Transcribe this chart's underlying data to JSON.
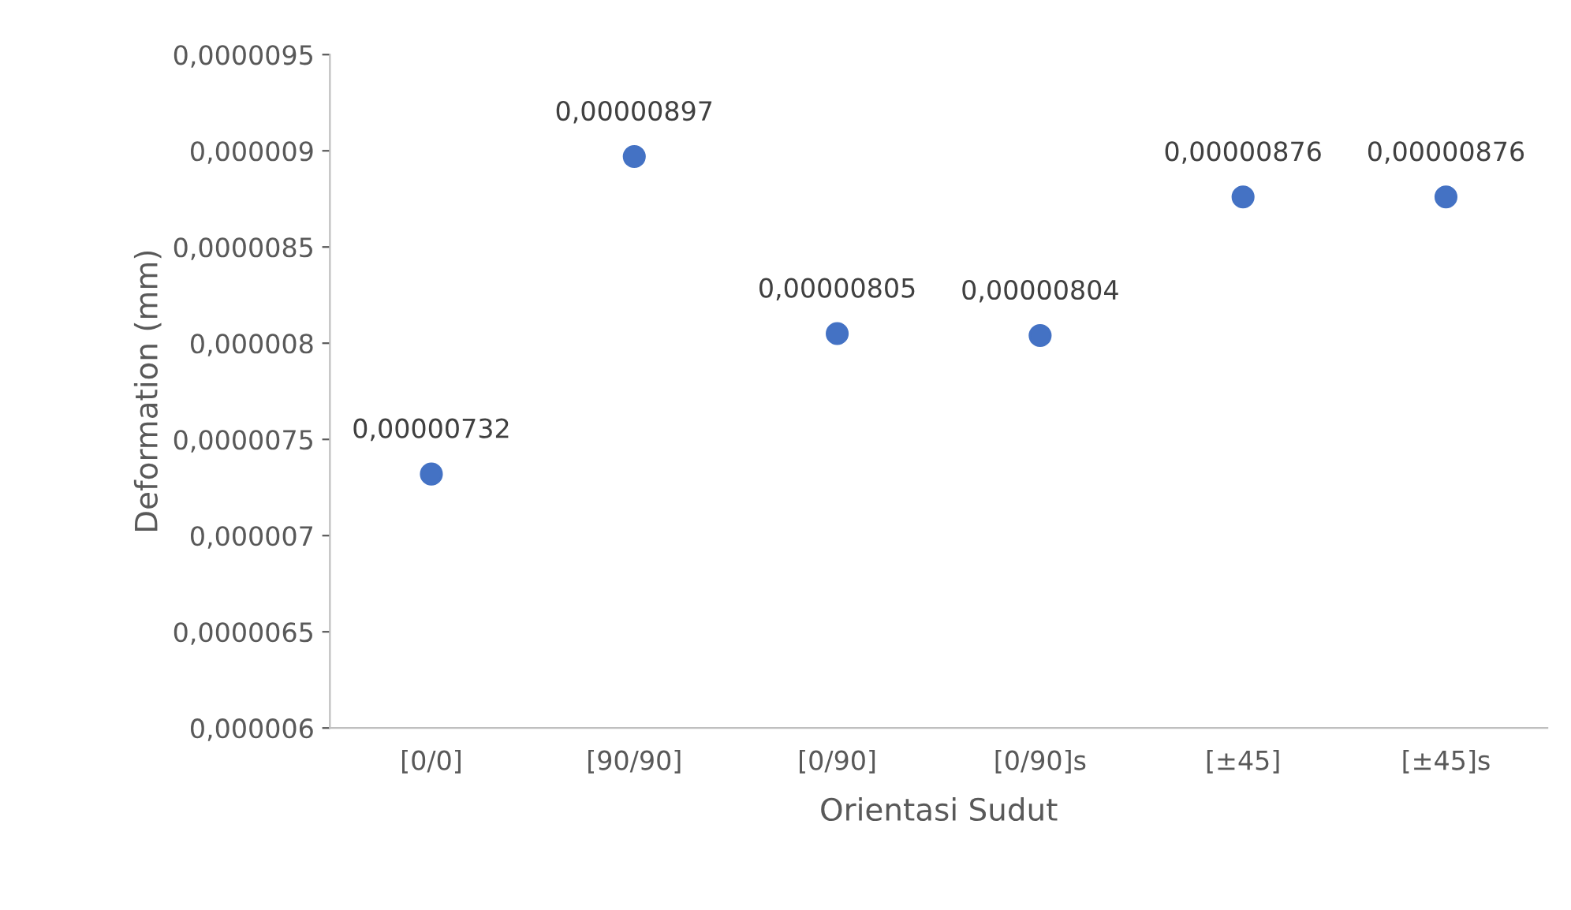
{
  "chart_data": {
    "type": "scatter",
    "xlabel": "Orientasi Sudut",
    "ylabel": "Deformation (mm)",
    "categories": [
      "[0/0]",
      "[90/90]",
      "[0/90]",
      "[0/90]s",
      "[±45]",
      "[±45]s"
    ],
    "series": [
      {
        "color": "#4472c4",
        "values": [
          7.32e-06,
          8.97e-06,
          8.05e-06,
          8.04e-06,
          8.76e-06,
          8.76e-06
        ],
        "value_labels": [
          "0,00000732",
          "0,00000897",
          "0,00000805",
          "0,00000804",
          "0,00000876",
          "0,00000876"
        ]
      }
    ],
    "ylim": [
      6e-06,
      9.5e-06
    ],
    "yticks": [
      {
        "value": 6e-06,
        "label": "0,000006"
      },
      {
        "value": 6.5e-06,
        "label": "0,0000065"
      },
      {
        "value": 7e-06,
        "label": "0,000007"
      },
      {
        "value": 7.5e-06,
        "label": "0,0000075"
      },
      {
        "value": 8e-06,
        "label": "0,000008"
      },
      {
        "value": 8.5e-06,
        "label": "0,0000085"
      },
      {
        "value": 9e-06,
        "label": "0,000009"
      },
      {
        "value": 9.5e-06,
        "label": "0,0000095"
      }
    ],
    "marker": "circle",
    "grid": false,
    "legend": false
  }
}
